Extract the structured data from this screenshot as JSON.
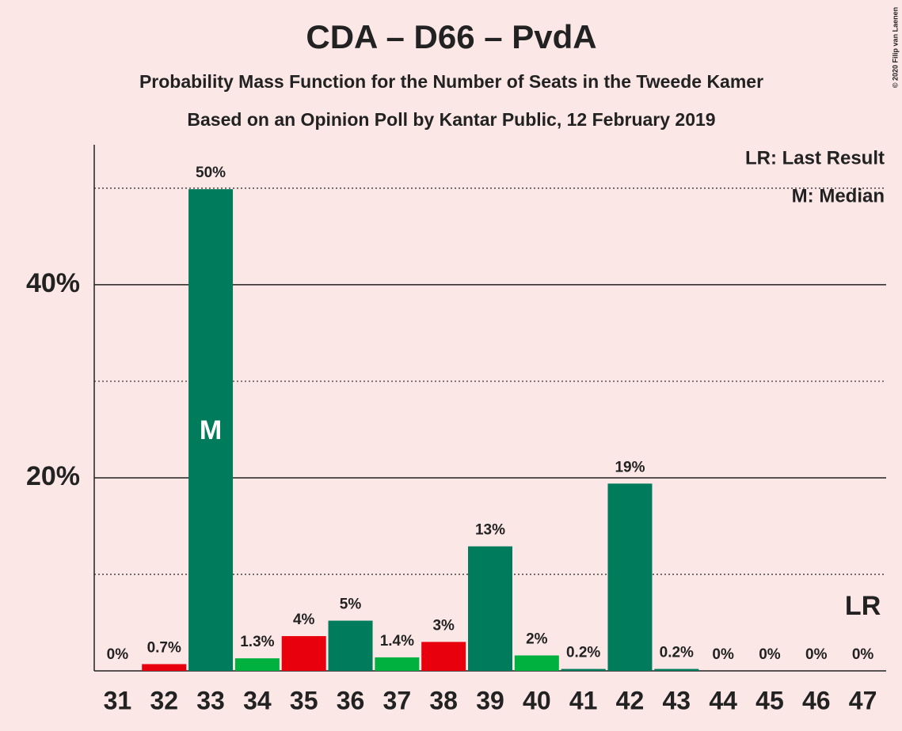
{
  "chart_data": {
    "type": "bar",
    "title": "CDA – D66 – PvdA",
    "subtitle": "Probability Mass Function for the Number of Seats in the Tweede Kamer",
    "subtitle2": "Based on an Opinion Poll by Kantar Public, 12 February 2019",
    "copyright": "© 2020 Filip van Laenen",
    "legend": [
      "LR: Last Result",
      "M: Median"
    ],
    "categories": [
      "31",
      "32",
      "33",
      "34",
      "35",
      "36",
      "37",
      "38",
      "39",
      "40",
      "41",
      "42",
      "43",
      "44",
      "45",
      "46",
      "47"
    ],
    "values": [
      0,
      0.7,
      49.9,
      1.3,
      3.6,
      5.2,
      1.4,
      3.0,
      12.9,
      1.6,
      0.2,
      19.4,
      0.2,
      0,
      0,
      0,
      0
    ],
    "value_labels": [
      "0%",
      "0.7%",
      "50%",
      "1.3%",
      "4%",
      "5%",
      "1.4%",
      "3%",
      "13%",
      "2%",
      "0.2%",
      "19%",
      "0.2%",
      "0%",
      "0%",
      "0%",
      "0%"
    ],
    "colors": [
      "#007c5c",
      "#e8000d",
      "#007c5c",
      "#00b140",
      "#e8000d",
      "#007c5c",
      "#00b140",
      "#e8000d",
      "#007c5c",
      "#00b140",
      "#007c5c",
      "#007c5c",
      "#007c5c",
      "#007c5c",
      "#007c5c",
      "#007c5c",
      "#007c5c"
    ],
    "median": {
      "category": "33",
      "label": "M"
    },
    "last_result": {
      "category": "47",
      "label": "LR"
    },
    "ylim": [
      0,
      54.5
    ],
    "yticks": [
      {
        "value": 20,
        "label": "20%"
      },
      {
        "value": 40,
        "label": "40%"
      }
    ],
    "minor_yticks": [
      10,
      30,
      50
    ],
    "grid": true
  }
}
